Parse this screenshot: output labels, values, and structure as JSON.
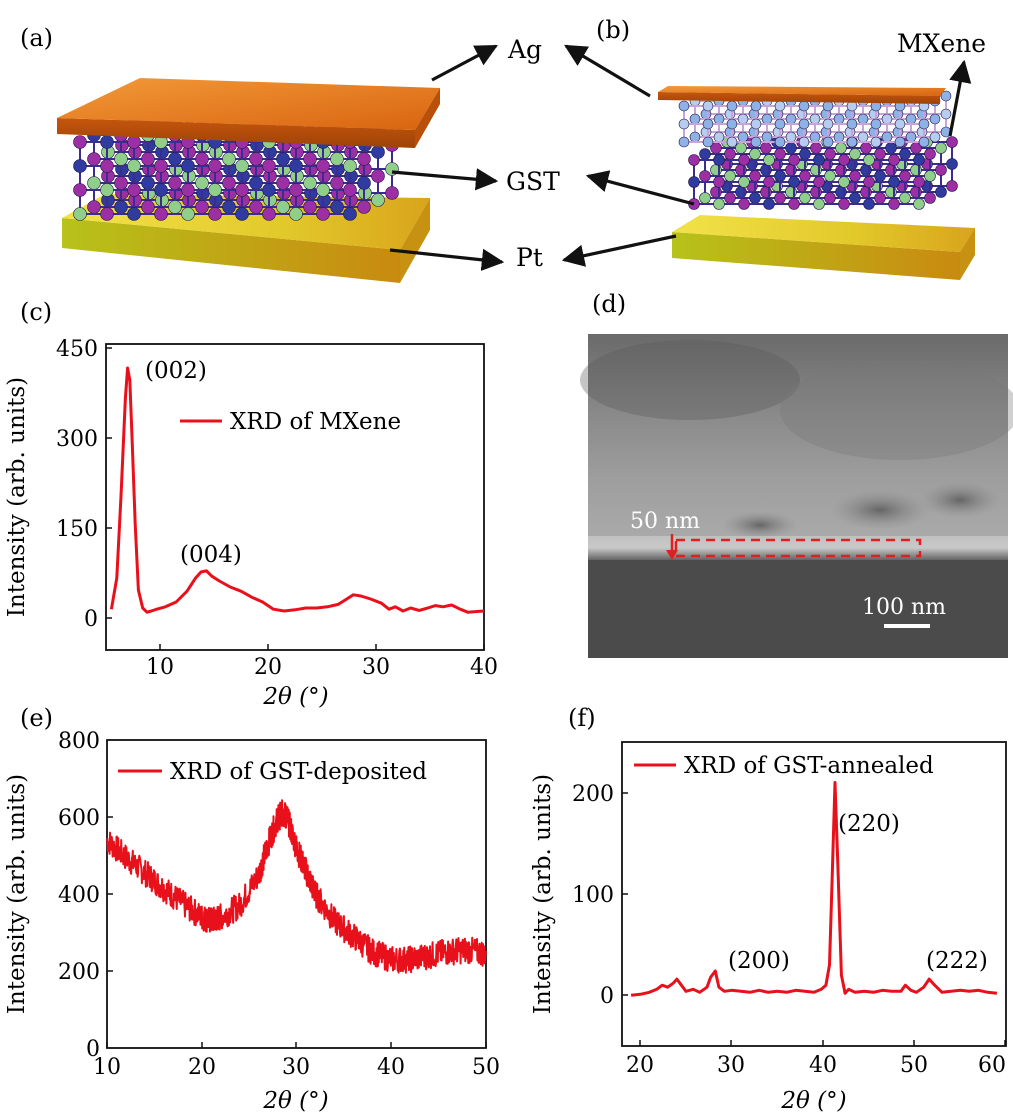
{
  "panels": {
    "a": "(a)",
    "b": "(b)",
    "c": "(c)",
    "d": "(d)",
    "e": "(e)",
    "f": "(f)"
  },
  "schematic": {
    "labels": {
      "ag": "Ag",
      "gst": "GST",
      "pt": "Pt",
      "mxene": "MXene"
    },
    "colors": {
      "ag": "#e8791e",
      "pt": "#d6c21a",
      "atom_purple": "#9b2fa3",
      "atom_blue": "#2f3b9f",
      "atom_green": "#8fcf8a",
      "mxene_atom": "#8fb2e6",
      "mxene_bond": "#c9a3d9"
    }
  },
  "sem": {
    "thickness_label": "50 nm",
    "scale_label": "100 nm",
    "colors": {
      "marker": "#e02020"
    }
  },
  "chart_data": [
    {
      "panel": "c",
      "type": "line",
      "title": "",
      "xlabel": "2θ (°)",
      "ylabel": "Intensity (arb. units)",
      "xlim": [
        5,
        40
      ],
      "ylim": [
        -60,
        450
      ],
      "xticks": [
        10,
        20,
        30,
        40
      ],
      "yticks": [
        0,
        150,
        300,
        450
      ],
      "legend": "XRD of MXene",
      "legend_position": "top-right",
      "color": "#e8101a",
      "x": [
        5.5,
        6.0,
        6.4,
        6.8,
        7.0,
        7.2,
        7.4,
        7.7,
        8.0,
        8.4,
        8.8,
        9.2,
        9.7,
        10.5,
        11.5,
        12.5,
        13.3,
        13.8,
        14.3,
        14.8,
        15.5,
        16.5,
        17.5,
        18.5,
        19.5,
        20.5,
        21.5,
        22.5,
        23.5,
        24.5,
        25.5,
        26.5,
        27.2,
        27.9,
        28.6,
        29.5,
        30.5,
        31.2,
        31.8,
        32.5,
        33.2,
        34.0,
        34.8,
        35.5,
        36.2,
        37.0,
        37.8,
        38.5,
        39.2,
        40.0
      ],
      "y": [
        8,
        60,
        200,
        360,
        410,
        390,
        300,
        150,
        40,
        10,
        3,
        5,
        8,
        12,
        20,
        38,
        60,
        70,
        72,
        63,
        55,
        45,
        38,
        28,
        20,
        8,
        5,
        7,
        10,
        10,
        12,
        16,
        24,
        32,
        30,
        25,
        18,
        8,
        12,
        5,
        10,
        6,
        10,
        14,
        12,
        15,
        8,
        3,
        4,
        5
      ],
      "annotations": [
        {
          "text": "(002)",
          "x": 7.2,
          "y": 410
        },
        {
          "text": "(004)",
          "x": 14.3,
          "y": 72
        }
      ]
    },
    {
      "panel": "e",
      "type": "line",
      "title": "",
      "xlabel": "2θ (°)",
      "ylabel": "Intensity (arb. units)",
      "xlim": [
        10,
        50
      ],
      "ylim": [
        0,
        800
      ],
      "xticks": [
        10,
        20,
        30,
        40,
        50
      ],
      "yticks": [
        0,
        200,
        400,
        600,
        800
      ],
      "legend": "XRD of GST-deposited",
      "legend_position": "top-right",
      "color": "#e8101a",
      "noisy": true,
      "x": [
        10,
        12,
        14,
        16,
        18,
        20,
        21,
        22,
        24,
        26,
        27,
        28,
        28.5,
        29,
        30,
        31,
        32,
        34,
        36,
        38,
        40,
        42,
        44,
        46,
        48,
        50
      ],
      "y": [
        540,
        495,
        455,
        415,
        375,
        340,
        330,
        340,
        370,
        450,
        530,
        595,
        610,
        600,
        520,
        460,
        400,
        330,
        290,
        250,
        230,
        230,
        240,
        250,
        255,
        245
      ]
    },
    {
      "panel": "f",
      "type": "line",
      "title": "",
      "xlabel": "2θ (°)",
      "ylabel": "Intensity (arb. units)",
      "xlim": [
        19,
        61
      ],
      "ylim": [
        -50,
        250
      ],
      "xticks": [
        20,
        30,
        40,
        50,
        60
      ],
      "yticks": [
        0,
        100,
        200
      ],
      "legend": "XRD of GST-annealed",
      "legend_position": "top-left",
      "color": "#e8101a",
      "x": [
        20.0,
        21.0,
        22.0,
        22.8,
        23.4,
        24.0,
        24.6,
        25.0,
        25.5,
        26.0,
        26.8,
        27.5,
        28.3,
        28.7,
        29.2,
        29.6,
        30.2,
        31.0,
        32.0,
        33.0,
        34.0,
        35.0,
        36.0,
        37.0,
        38.0,
        39.0,
        40.0,
        40.8,
        41.3,
        41.7,
        42.0,
        42.3,
        42.6,
        43.0,
        43.4,
        43.8,
        44.5,
        45.5,
        46.5,
        47.5,
        48.5,
        49.5,
        50.0,
        50.6,
        51.2,
        52.0,
        52.6,
        53.2,
        54.0,
        55.0,
        56.0,
        57.0,
        58.0,
        59.0,
        60.0
      ],
      "y": [
        0,
        1,
        3,
        6,
        10,
        8,
        12,
        16,
        10,
        4,
        6,
        3,
        8,
        18,
        24,
        8,
        4,
        5,
        4,
        3,
        5,
        3,
        4,
        3,
        5,
        4,
        3,
        6,
        10,
        30,
        120,
        210,
        130,
        20,
        2,
        6,
        3,
        4,
        3,
        5,
        4,
        4,
        10,
        5,
        3,
        8,
        16,
        10,
        3,
        4,
        5,
        4,
        5,
        3,
        2
      ],
      "annotations": [
        {
          "text": "(200)",
          "x": 29.4,
          "y": 24
        },
        {
          "text": "(220)",
          "x": 42.3,
          "y": 210
        },
        {
          "text": "(222)",
          "x": 52.7,
          "y": 16
        }
      ]
    }
  ]
}
